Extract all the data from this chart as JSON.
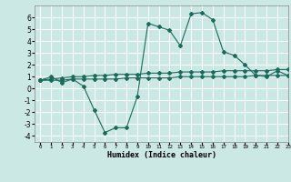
{
  "xlabel": "Humidex (Indice chaleur)",
  "background_color": "#cce8e4",
  "grid_color": "#ffffff",
  "line_color": "#1a6b5a",
  "xlim": [
    -0.5,
    23
  ],
  "ylim": [
    -4.5,
    7
  ],
  "yticks": [
    -4,
    -3,
    -2,
    -1,
    0,
    1,
    2,
    3,
    4,
    5,
    6
  ],
  "xticks": [
    0,
    1,
    2,
    3,
    4,
    5,
    6,
    7,
    8,
    9,
    10,
    11,
    12,
    13,
    14,
    15,
    16,
    17,
    18,
    19,
    20,
    21,
    22,
    23
  ],
  "series1_x": [
    0,
    1,
    2,
    3,
    4,
    5,
    6,
    7,
    8,
    9,
    10,
    11,
    12,
    13,
    14,
    15,
    16,
    17,
    18,
    19,
    20,
    21,
    22,
    23
  ],
  "series1_y": [
    0.7,
    1.0,
    0.5,
    0.8,
    0.2,
    -1.8,
    -3.7,
    -3.3,
    -3.3,
    -0.7,
    5.5,
    5.2,
    4.9,
    3.6,
    6.3,
    6.4,
    5.8,
    3.1,
    2.8,
    2.0,
    1.1,
    1.0,
    1.5,
    1.1
  ],
  "series2_x": [
    0,
    1,
    2,
    3,
    4,
    5,
    6,
    7,
    8,
    9,
    10,
    11,
    12,
    13,
    14,
    15,
    16,
    17,
    18,
    19,
    20,
    21,
    22,
    23
  ],
  "series2_y": [
    0.7,
    0.8,
    0.9,
    1.0,
    1.0,
    1.1,
    1.1,
    1.2,
    1.2,
    1.2,
    1.3,
    1.3,
    1.3,
    1.4,
    1.4,
    1.4,
    1.4,
    1.5,
    1.5,
    1.5,
    1.5,
    1.5,
    1.6,
    1.6
  ],
  "series3_x": [
    0,
    1,
    2,
    3,
    4,
    5,
    6,
    7,
    8,
    9,
    10,
    11,
    12,
    13,
    14,
    15,
    16,
    17,
    18,
    19,
    20,
    21,
    22,
    23
  ],
  "series3_y": [
    0.7,
    0.7,
    0.7,
    0.8,
    0.8,
    0.8,
    0.8,
    0.8,
    0.9,
    0.9,
    0.9,
    0.9,
    0.9,
    1.0,
    1.0,
    1.0,
    1.0,
    1.0,
    1.0,
    1.0,
    1.1,
    1.1,
    1.1,
    1.1
  ],
  "xlabel_fontsize": 6.0,
  "tick_fontsize_x": 4.2,
  "tick_fontsize_y": 5.5
}
